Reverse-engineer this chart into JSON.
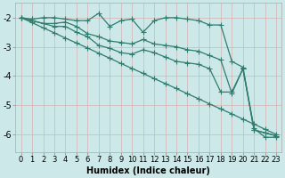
{
  "xlabel": "Humidex (Indice chaleur)",
  "background_color": "#cde8e8",
  "grid_color": "#c0d8d8",
  "line_color": "#2e7d6e",
  "xlim": [
    -0.5,
    23.5
  ],
  "ylim": [
    -6.6,
    -1.5
  ],
  "yticks": [
    -2,
    -3,
    -4,
    -5,
    -6
  ],
  "xticks": [
    0,
    1,
    2,
    3,
    4,
    5,
    6,
    7,
    8,
    9,
    10,
    11,
    12,
    13,
    14,
    15,
    16,
    17,
    18,
    19,
    20,
    21,
    22,
    23
  ],
  "lines": [
    {
      "x": [
        0,
        1,
        2,
        3,
        4,
        5,
        6,
        7,
        8,
        9,
        10,
        11,
        12,
        13,
        14,
        15,
        16,
        17,
        18,
        19,
        20,
        21,
        22,
        23
      ],
      "y": [
        -2.0,
        -2.05,
        -2.0,
        -2.0,
        -2.05,
        -2.1,
        -2.1,
        -1.85,
        -2.3,
        -2.1,
        -2.05,
        -2.5,
        -2.1,
        -2.0,
        -2.0,
        -2.05,
        -2.1,
        -2.25,
        -2.25,
        -3.5,
        -3.7,
        -5.8,
        -6.1,
        -6.1
      ]
    },
    {
      "x": [
        0,
        1,
        2,
        3,
        4,
        5,
        6,
        7,
        8,
        9,
        10,
        11,
        12,
        13,
        14,
        15,
        16,
        17,
        18,
        19,
        20,
        21,
        22,
        23
      ],
      "y": [
        -2.0,
        -2.1,
        -2.2,
        -2.2,
        -2.15,
        -2.3,
        -2.55,
        -2.65,
        -2.8,
        -2.85,
        -2.9,
        -2.75,
        -2.9,
        -2.95,
        -3.0,
        -3.1,
        -3.15,
        -3.3,
        -3.45,
        -4.6,
        -3.75,
        -5.85,
        -5.95,
        -6.05
      ]
    },
    {
      "x": [
        0,
        1,
        2,
        3,
        4,
        5,
        6,
        7,
        8,
        9,
        10,
        11,
        12,
        13,
        14,
        15,
        16,
        17,
        18,
        19,
        20,
        21,
        22,
        23
      ],
      "y": [
        -2.0,
        -2.1,
        -2.2,
        -2.3,
        -2.3,
        -2.5,
        -2.65,
        -2.95,
        -3.05,
        -3.2,
        -3.25,
        -3.1,
        -3.2,
        -3.35,
        -3.5,
        -3.55,
        -3.6,
        -3.75,
        -4.55,
        -4.55,
        -3.75,
        -5.85,
        -5.95,
        -6.05
      ]
    },
    {
      "x": [
        0,
        1,
        2,
        3,
        4,
        5,
        6,
        7,
        8,
        9,
        10,
        11,
        12,
        13,
        14,
        15,
        16,
        17,
        18,
        19,
        20,
        21,
        22,
        23
      ],
      "y": [
        -2.0,
        -2.17,
        -2.35,
        -2.52,
        -2.7,
        -2.87,
        -3.04,
        -3.22,
        -3.39,
        -3.57,
        -3.74,
        -3.91,
        -4.09,
        -4.26,
        -4.43,
        -4.61,
        -4.78,
        -4.96,
        -5.13,
        -5.3,
        -5.48,
        -5.65,
        -5.83,
        -6.0
      ]
    }
  ],
  "marker": "+",
  "markersize": 4,
  "linewidth": 0.9,
  "tick_fontsize": 6,
  "xlabel_fontsize": 7
}
